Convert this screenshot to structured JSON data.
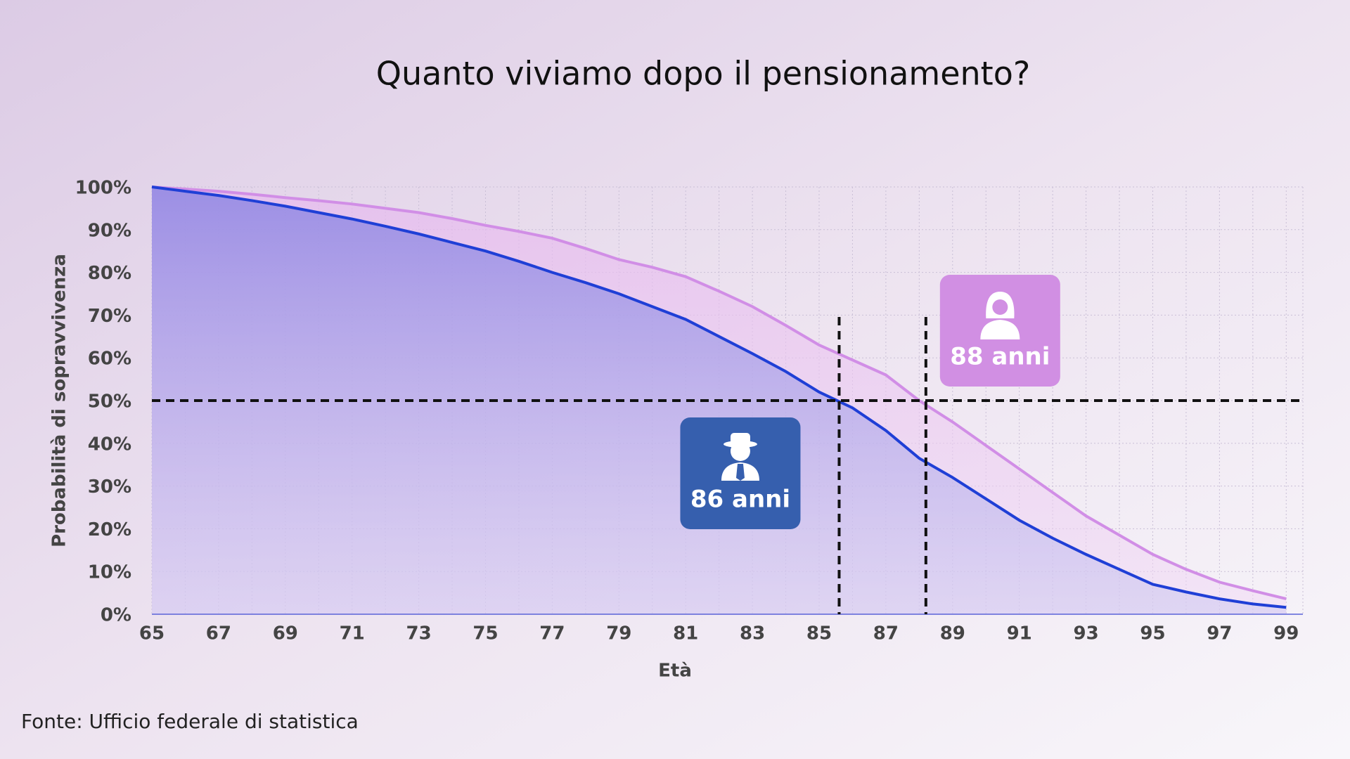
{
  "chart_data": {
    "type": "area-line",
    "title": "Quanto viviamo dopo il pensionamento?",
    "xlabel": "Età",
    "ylabel": "Probabilità di sopravvivenza",
    "source": "Fonte: Ufficio federale di statistica",
    "x": [
      65,
      66,
      67,
      68,
      69,
      70,
      71,
      72,
      73,
      74,
      75,
      76,
      77,
      78,
      79,
      80,
      81,
      82,
      83,
      84,
      85,
      86,
      87,
      88,
      89,
      90,
      91,
      92,
      93,
      94,
      95,
      96,
      97,
      98,
      99
    ],
    "series": [
      {
        "color": "#1f3fd6",
        "values": [
          100,
          99,
          98,
          96.8,
          95.5,
          94,
          92.5,
          90.8,
          89,
          87,
          85,
          82.6,
          80,
          77.6,
          75,
          72,
          69,
          65,
          61,
          56.8,
          52,
          48.3,
          43,
          36.5,
          32,
          27,
          22,
          17.8,
          14,
          10.5,
          7,
          5.2,
          3.6,
          2.4,
          1.6
        ]
      },
      {
        "color": "#d18ee6",
        "values": [
          100,
          99.5,
          99,
          98.3,
          97.5,
          96.8,
          96,
          95,
          94,
          92.6,
          91,
          89.6,
          88,
          85.6,
          83,
          81.2,
          79,
          75.6,
          72,
          67.6,
          63,
          59.5,
          56,
          50,
          45,
          39.5,
          34,
          28.5,
          23,
          18.5,
          14,
          10.5,
          7.5,
          5.5,
          3.6
        ]
      }
    ],
    "annotations": [
      {
        "text": "86 anni",
        "x": 85.6,
        "series": 0
      },
      {
        "text": "88 anni",
        "x": 88.2,
        "series": 1
      }
    ],
    "hline": 50,
    "xlim": [
      65,
      99.5
    ],
    "ylim": [
      0,
      100
    ],
    "xticks": [
      65,
      67,
      69,
      71,
      73,
      75,
      77,
      79,
      81,
      83,
      85,
      87,
      89,
      91,
      93,
      95,
      97,
      99
    ],
    "yticks": [
      {
        "value": 0,
        "label": "0%"
      },
      {
        "value": 10,
        "label": "10%"
      },
      {
        "value": 20,
        "label": "20%"
      },
      {
        "value": 30,
        "label": "30%"
      },
      {
        "value": 40,
        "label": "40%"
      },
      {
        "value": 50,
        "label": "50%"
      },
      {
        "value": 60,
        "label": "60%"
      },
      {
        "value": 70,
        "label": "70%"
      },
      {
        "value": 80,
        "label": "80%"
      },
      {
        "value": 90,
        "label": "90%"
      },
      {
        "value": 100,
        "label": "100%"
      }
    ],
    "grid": true
  }
}
